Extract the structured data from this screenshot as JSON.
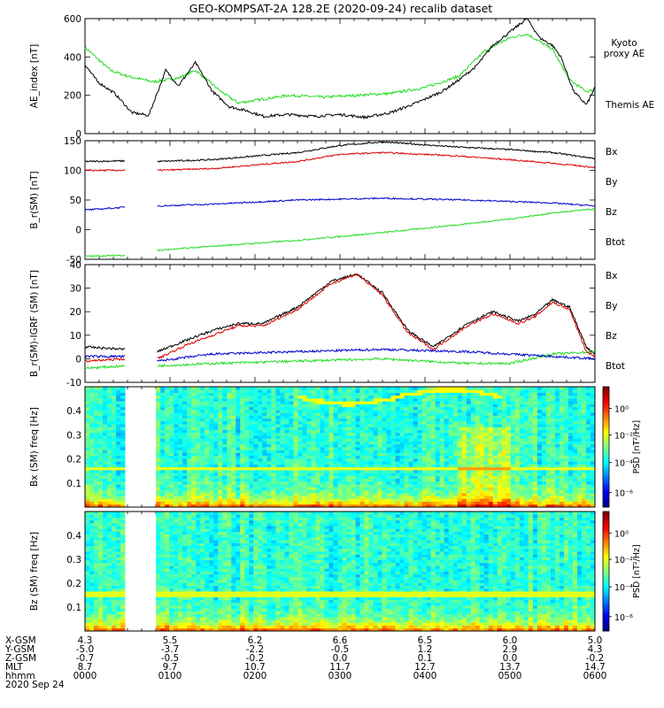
{
  "title": "GEO-KOMPSAT-2A 128.2E (2020-09-24) recalib dataset",
  "date_label": "2020 Sep 24",
  "colors": {
    "black": "#000000",
    "green": "#22dd22",
    "red": "#dd0000",
    "blue": "#0000cc"
  },
  "chart_data": [
    {
      "type": "line",
      "ylabel": "AE_index [nT]",
      "ylim": [
        0,
        600
      ],
      "yticks": [
        0,
        200,
        400,
        600
      ],
      "xlim": [
        0,
        6
      ],
      "series": [
        {
          "name": "Kyoto proxy AE",
          "color": "#22dd22",
          "x": [
            0,
            0.3,
            0.5,
            0.8,
            1.1,
            1.3,
            1.6,
            1.8,
            2.1,
            2.4,
            2.8,
            3.2,
            3.6,
            4.0,
            4.4,
            4.7,
            5.0,
            5.2,
            5.5,
            5.7,
            5.9,
            6.0
          ],
          "values": [
            450,
            330,
            300,
            270,
            290,
            330,
            220,
            160,
            180,
            200,
            190,
            200,
            210,
            240,
            300,
            430,
            500,
            520,
            440,
            280,
            220,
            230
          ]
        },
        {
          "name": "Themis AE",
          "color": "#000000",
          "x": [
            0,
            0.15,
            0.35,
            0.55,
            0.75,
            0.95,
            1.1,
            1.3,
            1.5,
            1.7,
            1.9,
            2.1,
            2.4,
            2.7,
            3.0,
            3.3,
            3.6,
            3.9,
            4.2,
            4.4,
            4.6,
            4.8,
            5.0,
            5.2,
            5.35,
            5.5,
            5.6,
            5.75,
            5.9,
            6.0
          ],
          "values": [
            360,
            270,
            210,
            110,
            95,
            330,
            250,
            370,
            220,
            140,
            120,
            90,
            100,
            90,
            100,
            85,
            110,
            160,
            220,
            280,
            350,
            460,
            530,
            600,
            500,
            460,
            400,
            220,
            150,
            240
          ]
        }
      ]
    },
    {
      "type": "line",
      "ylabel": "B_r(SM) [nT]",
      "ylim": [
        -50,
        150
      ],
      "yticks": [
        -50,
        0,
        50,
        100,
        150
      ],
      "xlim": [
        0,
        6
      ],
      "gap": [
        0.48,
        0.85
      ],
      "series": [
        {
          "name": "Bx",
          "color": "#000000",
          "x": [
            0,
            0.48,
            0.85,
            1.5,
            2.5,
            3.0,
            3.5,
            4.3,
            5.0,
            5.5,
            6.0
          ],
          "values": [
            115,
            116,
            115,
            118,
            130,
            142,
            148,
            140,
            135,
            130,
            120
          ]
        },
        {
          "name": "By",
          "color": "#22dd22",
          "x": [
            0,
            0.48,
            0.85,
            1.5,
            2.5,
            3.5,
            4.5,
            5.0,
            5.5,
            6.0
          ],
          "values": [
            -45,
            -43,
            -35,
            -28,
            -18,
            -5,
            10,
            18,
            28,
            35
          ]
        },
        {
          "name": "Bz",
          "color": "#dd0000",
          "x": [
            0,
            0.48,
            0.85,
            1.5,
            2.5,
            3.0,
            3.5,
            4.3,
            5.0,
            5.5,
            6.0
          ],
          "values": [
            100,
            100,
            100,
            103,
            115,
            127,
            130,
            125,
            118,
            112,
            105
          ]
        },
        {
          "name": "Btot",
          "color": "#0000cc",
          "x": [
            0,
            0.48,
            0.85,
            1.5,
            2.5,
            3.5,
            4.5,
            5.5,
            6.0
          ],
          "values": [
            33,
            38,
            40,
            43,
            50,
            53,
            50,
            45,
            40
          ]
        }
      ]
    },
    {
      "type": "line",
      "ylabel": "B_r(SM)-IGRF (SM) [nT]",
      "ylim": [
        -10,
        40
      ],
      "yticks": [
        -10,
        0,
        10,
        20,
        30,
        40
      ],
      "xlim": [
        0,
        6
      ],
      "gap": [
        0.48,
        0.85
      ],
      "series": [
        {
          "name": "Bx",
          "color": "#000000",
          "x": [
            0,
            0.48,
            0.85,
            1.2,
            1.5,
            1.8,
            2.1,
            2.5,
            2.9,
            3.2,
            3.5,
            3.8,
            4.1,
            4.5,
            4.8,
            5.1,
            5.3,
            5.5,
            5.7,
            5.9,
            6.0
          ],
          "values": [
            5,
            4,
            3,
            8,
            12,
            15,
            15,
            22,
            33,
            36,
            28,
            12,
            5,
            15,
            20,
            16,
            19,
            25,
            22,
            5,
            2
          ]
        },
        {
          "name": "By",
          "color": "#22dd22",
          "x": [
            0,
            0.48,
            0.85,
            1.5,
            2.5,
            3.5,
            4.5,
            5.0,
            5.5,
            6.0
          ],
          "values": [
            -4,
            -3,
            -3,
            -2,
            -1,
            0,
            -2,
            -2,
            2,
            3
          ]
        },
        {
          "name": "Bz",
          "color": "#dd0000",
          "x": [
            0,
            0.48,
            0.85,
            1.2,
            1.5,
            1.8,
            2.1,
            2.5,
            2.9,
            3.2,
            3.5,
            3.8,
            4.1,
            4.5,
            4.8,
            5.1,
            5.3,
            5.5,
            5.7,
            5.9,
            6.0
          ],
          "values": [
            -1,
            0,
            0,
            6,
            10,
            14,
            14,
            21,
            32,
            36,
            27,
            11,
            4,
            14,
            19,
            15,
            18,
            24,
            21,
            3,
            1
          ]
        },
        {
          "name": "Btot",
          "color": "#0000cc",
          "x": [
            0,
            0.48,
            0.85,
            1.5,
            2.5,
            3.5,
            4.5,
            5.0,
            5.5,
            6.0
          ],
          "values": [
            1,
            1,
            -1,
            2,
            3,
            4,
            3,
            2,
            1,
            0
          ]
        }
      ]
    },
    {
      "type": "heatmap",
      "ylabel": "Bx (SM) freq [Hz]",
      "ylim": [
        0,
        0.5
      ],
      "yticks": [
        0.1,
        0.2,
        0.3,
        0.4
      ],
      "xlim": [
        0,
        6
      ],
      "gap": [
        0.48,
        0.85
      ],
      "colorbar_label": "PSD [nT²/Hz]",
      "colorbar_ticks": [
        "10⁰",
        "10⁻²",
        "10⁻⁴",
        "10⁻⁶"
      ]
    },
    {
      "type": "heatmap",
      "ylabel": "Bz (SM) freq [Hz]",
      "ylim": [
        0,
        0.5
      ],
      "yticks": [
        0.1,
        0.2,
        0.3,
        0.4
      ],
      "xlim": [
        0,
        6
      ],
      "gap": [
        0.48,
        0.85
      ],
      "colorbar_label": "PSD [nT²/Hz]",
      "colorbar_ticks": [
        "10⁰",
        "10⁻²",
        "10⁻⁴",
        "10⁻⁶"
      ]
    }
  ],
  "legends": {
    "ae": [
      "Kyoto proxy AE",
      "Themis AE"
    ],
    "mag": [
      "Bx",
      "By",
      "Bz",
      "Btot"
    ]
  },
  "ephemeris": {
    "row_labels": [
      "X-GSM",
      "Y-GSM",
      "Z-GSM",
      "MLT",
      "hhmm"
    ],
    "columns": [
      [
        "4.3",
        "-5.0",
        "-0.7",
        "8.7",
        "0000"
      ],
      [
        "5.5",
        "-3.7",
        "-0.5",
        "9.7",
        "0100"
      ],
      [
        "6.2",
        "-2.2",
        "-0.2",
        "10.7",
        "0200"
      ],
      [
        "6.6",
        "-0.5",
        "0.0",
        "11.7",
        "0300"
      ],
      [
        "6.5",
        "1.2",
        "0.1",
        "12.7",
        "0400"
      ],
      [
        "6.0",
        "2.9",
        "0.0",
        "13.7",
        "0500"
      ],
      [
        "5.0",
        "4.3",
        "-0.2",
        "14.7",
        "0600"
      ]
    ]
  }
}
